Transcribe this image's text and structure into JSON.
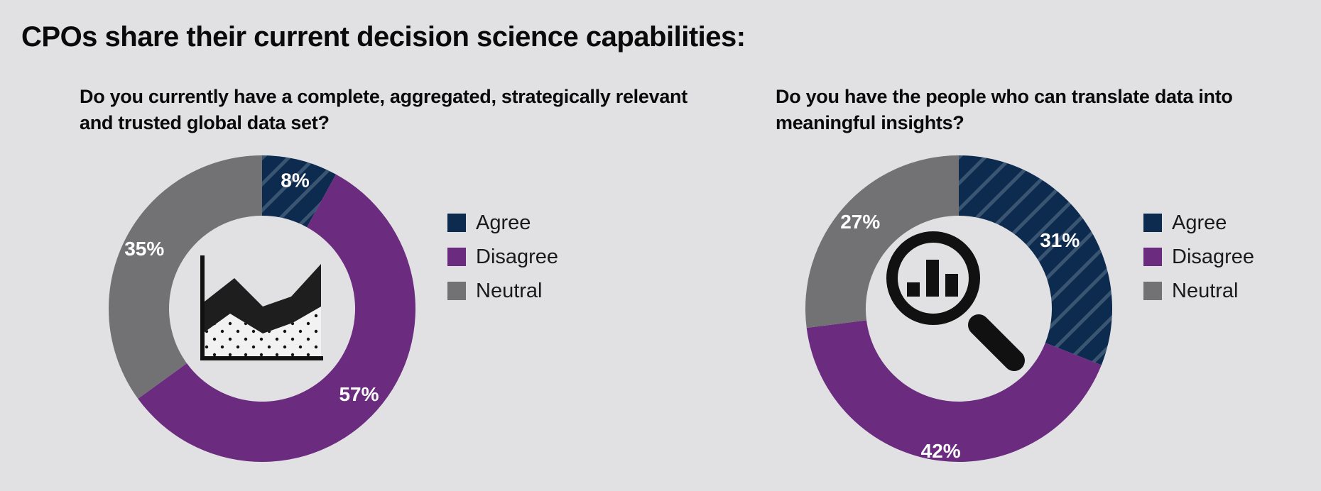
{
  "header": {
    "title": "CPOs share their current decision science capabilities:"
  },
  "colors": {
    "agree": "#0d2a4f",
    "agree_stripe": "#3a5572",
    "disagree": "#6b2b7f",
    "neutral": "#727274",
    "background": "#e1e1e3",
    "icon": "#111111"
  },
  "chart_data": [
    {
      "type": "pie",
      "variant": "donut",
      "title": "Do you currently have a complete, aggregated, strategically relevant and trusted global data set?",
      "categories": [
        "Agree",
        "Disagree",
        "Neutral"
      ],
      "values": [
        8,
        57,
        35
      ],
      "labels": [
        "8%",
        "57%",
        "35%"
      ],
      "legend": "right",
      "center_icon": "area-chart-icon"
    },
    {
      "type": "pie",
      "variant": "donut",
      "title": "Do you have the people who can translate data into meaningful insights?",
      "categories": [
        "Agree",
        "Disagree",
        "Neutral"
      ],
      "values": [
        31,
        42,
        27
      ],
      "labels": [
        "31%",
        "42%",
        "27%"
      ],
      "legend": "right",
      "center_icon": "magnifier-bar-chart-icon"
    }
  ]
}
